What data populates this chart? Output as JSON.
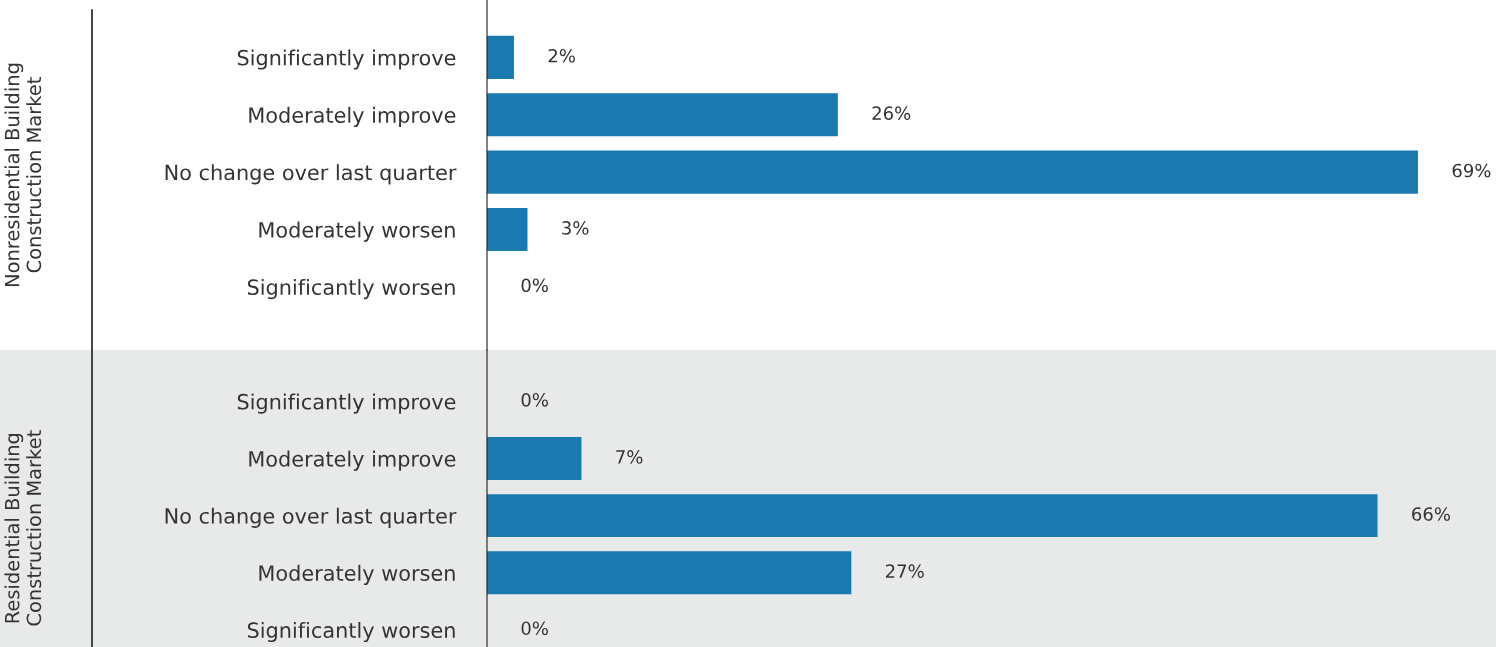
{
  "chart_data": [
    {
      "type": "bar",
      "orientation": "horizontal",
      "ylabel": "Nonresidential Building\nConstruction Market",
      "categories": [
        "Significantly improve",
        "Moderately improve",
        "No change over last quarter",
        "Moderately worsen",
        "Significantly worsen"
      ],
      "values": [
        2,
        26,
        69,
        3,
        0
      ],
      "value_labels": [
        "2%",
        "26%",
        "69%",
        "3%",
        "0%"
      ],
      "color": "#1a7ab0",
      "tick_labels": "y",
      "grid": false,
      "legend": false
    },
    {
      "type": "bar",
      "orientation": "horizontal",
      "ylabel": "Residential Building\nConstruction Market",
      "categories": [
        "Significantly improve",
        "Moderately improve",
        "No change over last quarter",
        "Moderately worsen",
        "Significantly worsen"
      ],
      "values": [
        0,
        7,
        66,
        27,
        0
      ],
      "value_labels": [
        "0%",
        "7%",
        "66%",
        "27%",
        "0%"
      ],
      "color": "#1a7ab0",
      "tick_labels": "y",
      "grid": false,
      "legend": false
    }
  ]
}
